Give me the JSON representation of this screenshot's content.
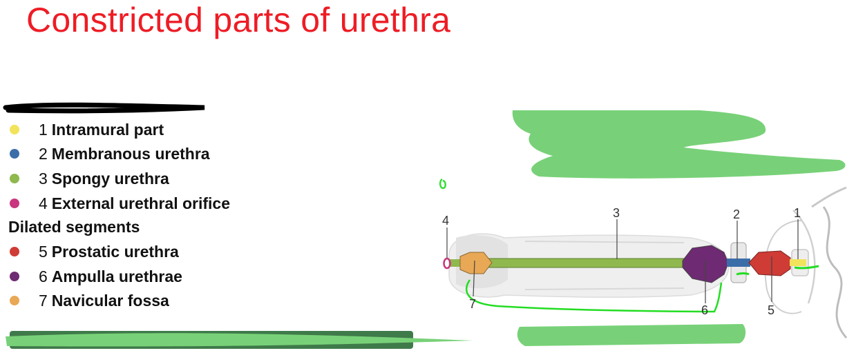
{
  "title": "Constricted parts of urethra",
  "legend": {
    "constricted": [
      {
        "number": "1",
        "label": "Intramural part",
        "color": "#f2e35c"
      },
      {
        "number": "2",
        "label": "Membranous urethra",
        "color": "#3b6ea8"
      },
      {
        "number": "3",
        "label": "Spongy urethra",
        "color": "#8fb84e"
      },
      {
        "number": "4",
        "label": "External urethral orifice",
        "color": "#c9357e"
      }
    ],
    "dilated_heading": "Dilated segments",
    "dilated": [
      {
        "number": "5",
        "label": "Prostatic urethra",
        "color": "#cf3b35"
      },
      {
        "number": "6",
        "label": "Ampulla urethrae",
        "color": "#6e2a72"
      },
      {
        "number": "7",
        "label": "Navicular fossa",
        "color": "#e8a855"
      }
    ]
  },
  "diagram": {
    "callouts": [
      "1",
      "2",
      "3",
      "4",
      "5",
      "6",
      "7"
    ],
    "segment_colors": {
      "orifice": "#c9357e",
      "navicular": "#e8a855",
      "spongy": "#8fb84e",
      "ampulla": "#6e2a72",
      "membranous": "#3b6ea8",
      "prostatic": "#cf3b35",
      "intramural": "#f2e35c"
    },
    "scribble_color": "#6fd26f",
    "stroke_color": "#22dd22"
  }
}
